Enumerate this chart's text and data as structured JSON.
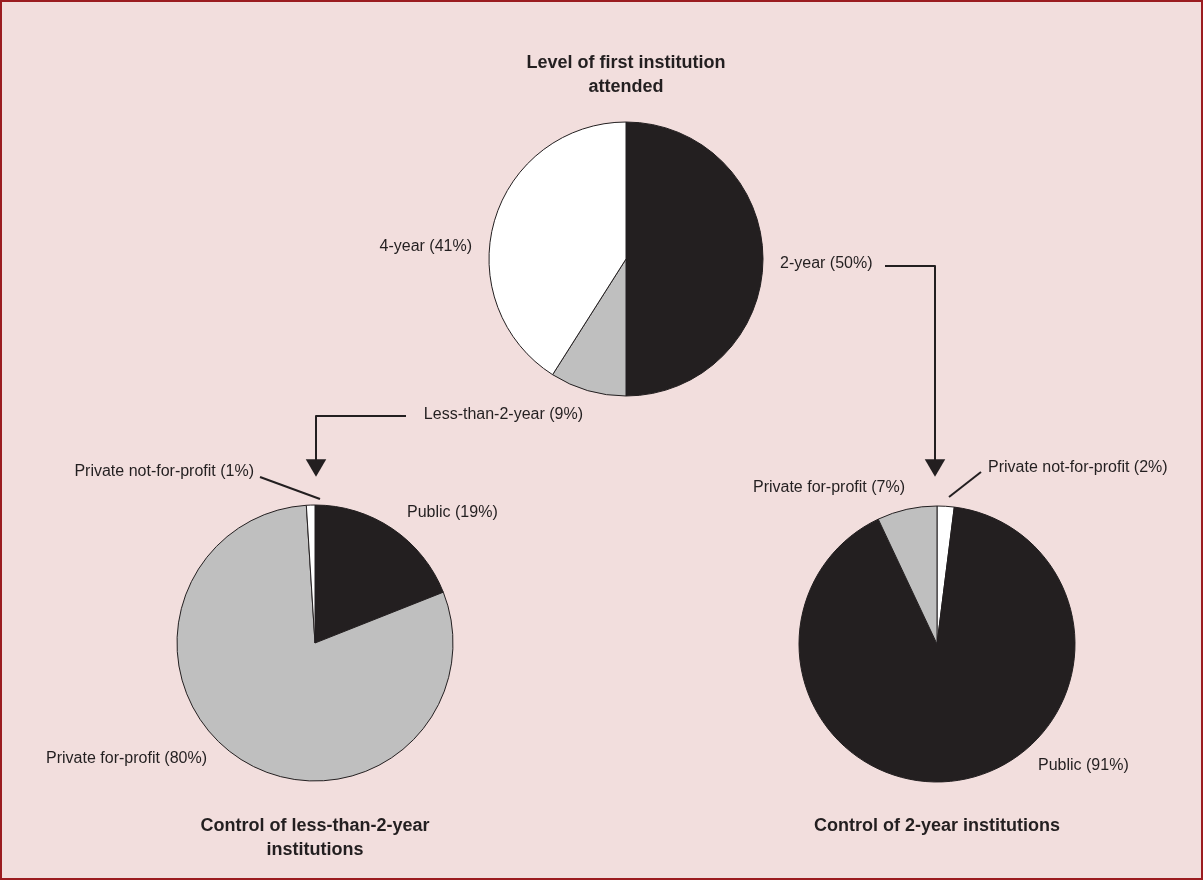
{
  "chart_data": [
    {
      "type": "pie",
      "title": "Level of first institution attended",
      "categories": [
        "2-year",
        "Less-than-2-year",
        "4-year"
      ],
      "values": [
        50,
        9,
        41
      ],
      "value_labels": [
        "(50%)",
        "(9%)",
        "(41%)"
      ],
      "colors": [
        "#231f20",
        "#bfbfbf",
        "#ffffff"
      ]
    },
    {
      "type": "pie",
      "title": "Control of less-than-2-year institutions",
      "categories": [
        "Public",
        "Private for-profit",
        "Private not-for-profit"
      ],
      "values": [
        19,
        80,
        1
      ],
      "value_labels": [
        "(19%)",
        "(80%)",
        "(1%)"
      ],
      "colors": [
        "#231f20",
        "#bfbfbf",
        "#ffffff"
      ]
    },
    {
      "type": "pie",
      "title": "Control of 2-year institutions",
      "categories": [
        "Private not-for-profit",
        "Public",
        "Private for-profit"
      ],
      "values": [
        2,
        91,
        7
      ],
      "value_labels": [
        "(2%)",
        "(91%)",
        "(7%)"
      ],
      "colors": [
        "#ffffff",
        "#231f20",
        "#bfbfbf"
      ]
    }
  ]
}
